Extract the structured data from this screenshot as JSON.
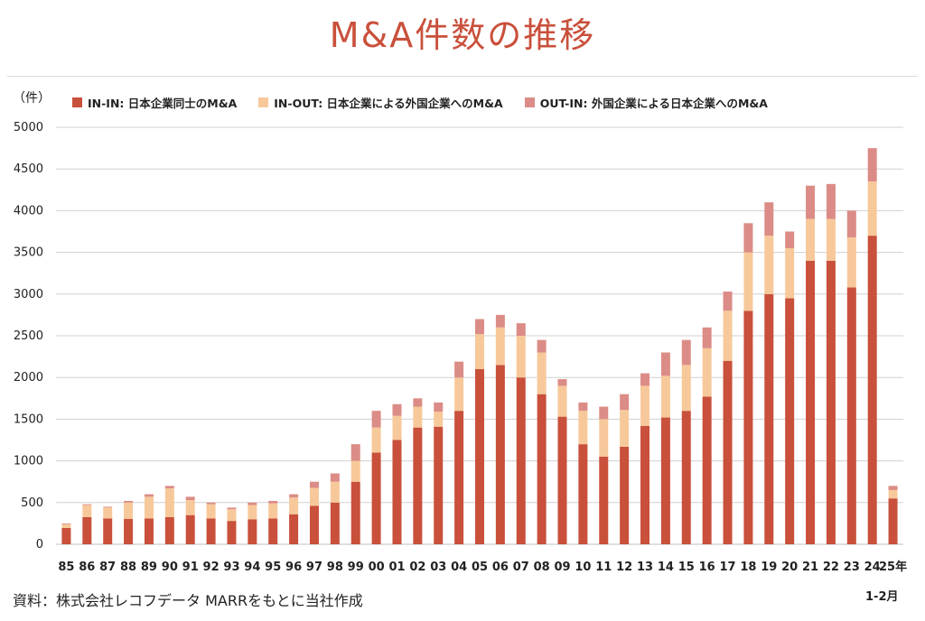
{
  "title": "M&A件数の推移",
  "unit_label": "（件）",
  "source": "資料：株式会社レコフデータ MARRをもとに当社作成",
  "x_sublabel": "1-2月",
  "colors": {
    "title": "#c9503b",
    "in_in": "#c9503b",
    "in_out": "#f7c99a",
    "out_in": "#dc8c86",
    "grid": "#d0d0d0"
  },
  "chart_data": {
    "type": "bar",
    "stacked": true,
    "title": "M&A件数の推移",
    "ylabel": "（件）",
    "ylim": [
      0,
      5000
    ],
    "yticks": [
      0,
      500,
      1000,
      1500,
      2000,
      2500,
      3000,
      3500,
      4000,
      4500,
      5000
    ],
    "grid": true,
    "legend_position": "top",
    "categories": [
      "85",
      "86",
      "87",
      "88",
      "89",
      "90",
      "91",
      "92",
      "93",
      "94",
      "95",
      "96",
      "97",
      "98",
      "99",
      "00",
      "01",
      "02",
      "03",
      "04",
      "05",
      "06",
      "07",
      "08",
      "09",
      "10",
      "11",
      "12",
      "13",
      "14",
      "15",
      "16",
      "17",
      "18",
      "19",
      "20",
      "21",
      "22",
      "23",
      "24",
      "25年"
    ],
    "series": [
      {
        "name": "IN-IN: 日本企業同士のM&A",
        "values": [
          195,
          325,
          310,
          305,
          310,
          325,
          350,
          310,
          280,
          300,
          310,
          360,
          460,
          500,
          750,
          1100,
          1250,
          1400,
          1410,
          1600,
          2100,
          2150,
          2000,
          1800,
          1530,
          1200,
          1050,
          1170,
          1420,
          1520,
          1600,
          1770,
          2200,
          2800,
          3000,
          2950,
          3400,
          3400,
          3080,
          3700,
          550
        ]
      },
      {
        "name": "IN-OUT: 日本企業による外国企業へのM&A",
        "values": [
          45,
          145,
          130,
          195,
          260,
          345,
          180,
          170,
          140,
          170,
          180,
          200,
          215,
          250,
          250,
          300,
          290,
          250,
          180,
          400,
          420,
          450,
          500,
          500,
          370,
          400,
          450,
          440,
          480,
          500,
          550,
          580,
          600,
          700,
          700,
          600,
          500,
          500,
          600,
          650,
          100
        ]
      },
      {
        "name": "OUT-IN: 外国企業による日本企業へのM&A",
        "values": [
          10,
          10,
          10,
          20,
          30,
          30,
          40,
          20,
          20,
          30,
          30,
          40,
          75,
          100,
          200,
          200,
          140,
          100,
          110,
          190,
          180,
          150,
          150,
          150,
          80,
          100,
          150,
          190,
          150,
          280,
          300,
          250,
          230,
          350,
          400,
          200,
          400,
          420,
          320,
          400,
          50
        ]
      }
    ]
  }
}
